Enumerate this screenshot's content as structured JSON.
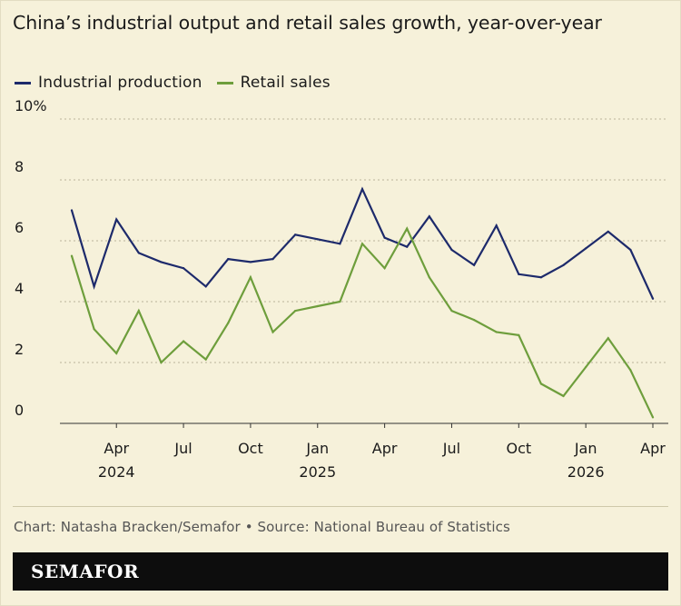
{
  "title": "China’s industrial output and retail sales growth, year-over-year",
  "credit": "Chart: Natasha Bracken/Semafor • Source: National Bureau of Statistics",
  "logo": "SEMAFOR",
  "colors": {
    "background": "#f6f1da",
    "industrial": "#1d2a6b",
    "retail": "#6e9e3c",
    "grid": "#b9b39b"
  },
  "chart_data": {
    "type": "line",
    "title": "China’s industrial output and retail sales growth, year-over-year",
    "legend_position": "top-left",
    "grid": true,
    "ylim": [
      0,
      10
    ],
    "yticks": [
      {
        "value": 0,
        "label": "0"
      },
      {
        "value": 2,
        "label": "2"
      },
      {
        "value": 4,
        "label": "4"
      },
      {
        "value": 6,
        "label": "6"
      },
      {
        "value": 8,
        "label": "8"
      },
      {
        "value": 10,
        "label": "10%"
      }
    ],
    "x": [
      "2024-02",
      "2024-03",
      "2024-04",
      "2024-05",
      "2024-06",
      "2024-07",
      "2024-08",
      "2024-09",
      "2024-10",
      "2024-11",
      "2024-12",
      "2025-01",
      "2025-02",
      "2025-03",
      "2025-04",
      "2025-05",
      "2025-06",
      "2025-07",
      "2025-08",
      "2025-09",
      "2025-10",
      "2025-11",
      "2025-12",
      "2026-01",
      "2026-02",
      "2026-03",
      "2026-04"
    ],
    "xticks": [
      {
        "x": "2024-04",
        "label": "Apr",
        "year": "2024"
      },
      {
        "x": "2024-07",
        "label": "Jul",
        "year": ""
      },
      {
        "x": "2024-10",
        "label": "Oct",
        "year": ""
      },
      {
        "x": "2025-01",
        "label": "Jan",
        "year": "2025"
      },
      {
        "x": "2025-04",
        "label": "Apr",
        "year": ""
      },
      {
        "x": "2025-07",
        "label": "Jul",
        "year": ""
      },
      {
        "x": "2025-10",
        "label": "Oct",
        "year": ""
      },
      {
        "x": "2026-01",
        "label": "Jan",
        "year": "2026"
      },
      {
        "x": "2026-04",
        "label": "Apr",
        "year": ""
      }
    ],
    "series": [
      {
        "name": "Industrial production",
        "color": "#1d2a6b",
        "values": [
          7.0,
          4.5,
          6.7,
          5.6,
          5.3,
          5.1,
          4.5,
          5.4,
          5.3,
          5.4,
          6.2,
          6.05,
          5.9,
          7.7,
          6.1,
          5.8,
          6.8,
          5.7,
          5.2,
          6.5,
          4.9,
          4.8,
          5.2,
          5.75,
          6.3,
          5.7,
          4.1
        ]
      },
      {
        "name": "Retail sales",
        "color": "#6e9e3c",
        "values": [
          5.5,
          3.1,
          2.3,
          3.7,
          2.0,
          2.7,
          2.1,
          3.3,
          4.8,
          3.0,
          3.7,
          3.85,
          4.0,
          5.9,
          5.1,
          6.4,
          4.8,
          3.7,
          3.4,
          3.0,
          2.9,
          1.3,
          0.9,
          1.85,
          2.8,
          1.75,
          0.2
        ]
      }
    ]
  }
}
